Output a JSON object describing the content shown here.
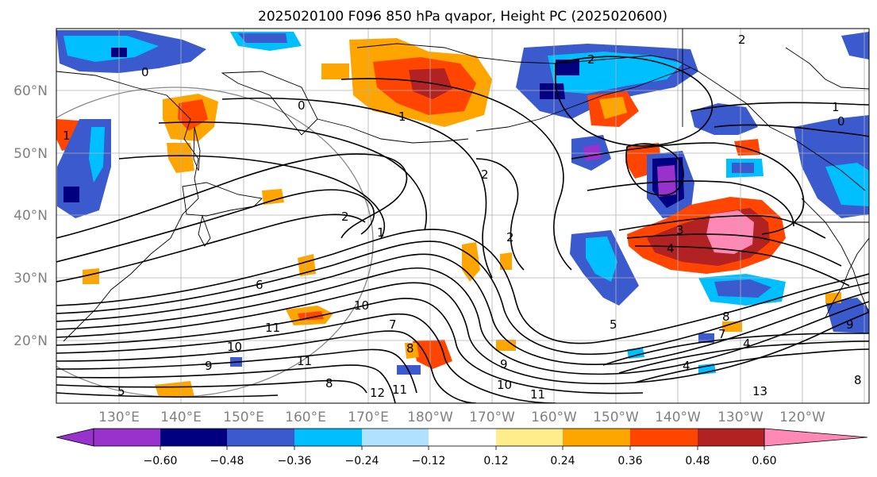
{
  "title": "2025020100 F096 850 hPa qvapor, Height PC (2025020600)",
  "lat_labels": [
    "60°N",
    "50°N",
    "40°N",
    "30°N",
    "20°N"
  ],
  "lon_labels": [
    "130°E",
    "140°E",
    "150°E",
    "160°E",
    "170°E",
    "180°W",
    "170°W",
    "160°W",
    "150°W",
    "140°W",
    "130°W",
    "120°W"
  ],
  "colorbar": {
    "colors": [
      "#9932cc",
      "#000080",
      "#3a5acd",
      "#00bfff",
      "#b0e2ff",
      "#ffffff",
      "#ffec8b",
      "#ffa500",
      "#ff4500",
      "#b22222",
      "#ff88b4"
    ],
    "tick_labels": [
      "−0.60",
      "−0.48",
      "−0.36",
      "−0.24",
      "−0.12",
      "0.12",
      "0.24",
      "0.36",
      "0.48",
      "0.60"
    ]
  },
  "contour_labels": [
    "0",
    "0",
    "1",
    "2",
    "2",
    "1",
    "1",
    "0",
    "2",
    "3",
    "4",
    "1",
    "2",
    "2",
    "6",
    "10",
    "11",
    "10",
    "7",
    "8",
    "9",
    "10",
    "11",
    "11",
    "12",
    "11",
    "8",
    "9",
    "8",
    "7",
    "5",
    "4",
    "4",
    "13",
    "9",
    "8",
    "5"
  ]
}
